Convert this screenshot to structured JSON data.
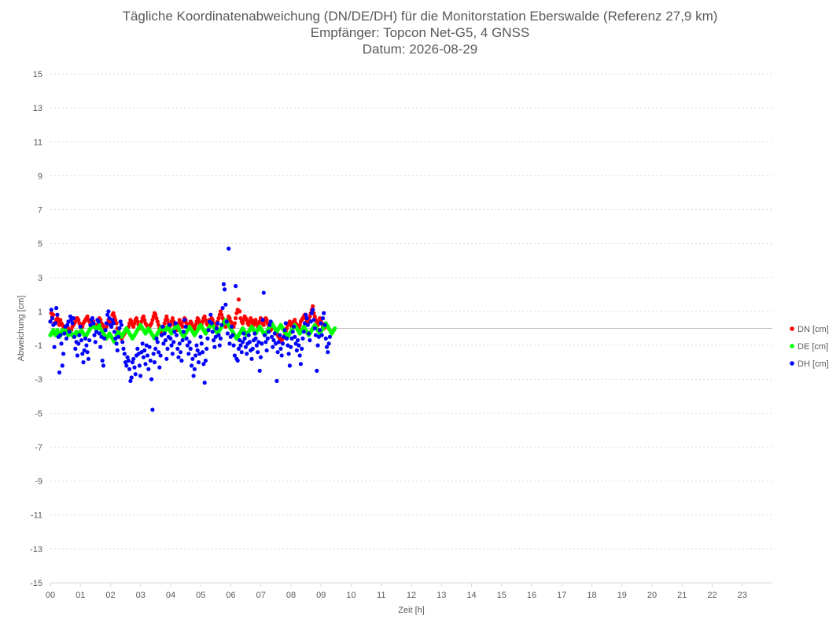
{
  "chart_data": {
    "type": "scatter",
    "title": "Tägliche Koordinatenabweichung (DN/DE/DH) für die Monitorstation Eberswalde (Referenz 27,9 km)",
    "subtitle1": "Empfänger: Topcon Net-G5, 4 GNSS",
    "subtitle2": "Datum: 2026-08-29",
    "xlabel": "Zeit [h]",
    "ylabel": "Abweichung [cm]",
    "xlim": [
      0,
      24
    ],
    "ylim": [
      -15,
      15
    ],
    "y_ticks": [
      15,
      13,
      11,
      9,
      7,
      5,
      3,
      1,
      -1,
      -3,
      -5,
      -7,
      -9,
      -11,
      -13,
      -15
    ],
    "x_tick_labels": [
      "00",
      "01",
      "02",
      "03",
      "04",
      "05",
      "06",
      "07",
      "08",
      "09",
      "10",
      "11",
      "12",
      "13",
      "14",
      "15",
      "16",
      "17",
      "18",
      "19",
      "20",
      "21",
      "22",
      "23"
    ],
    "grid": "horizontal dashed",
    "legend_position": "right",
    "sample_interval_h": 0.0333,
    "series": [
      {
        "name": "DN [cm]",
        "color": "#ff0000",
        "y": [
          0.4,
          0.9,
          0.7,
          0.8,
          0.3,
          0.3,
          0.5,
          0.6,
          0.4,
          0.2,
          0.5,
          0.3,
          0.2,
          0.1,
          0.1,
          -0.1,
          -0.2,
          -0.1,
          0.0,
          -0.1,
          -0.2,
          -0.1,
          0.1,
          0.2,
          0.3,
          0.4,
          0.6,
          0.6,
          0.5,
          0.3,
          0.2,
          0.0,
          0.1,
          0.3,
          0.4,
          0.5,
          0.6,
          0.7,
          0.5,
          0.4,
          0.3,
          0.5,
          0.6,
          0.4,
          0.2,
          0.1,
          0.0,
          0.2,
          0.4,
          0.6,
          0.5,
          0.3,
          0.2,
          0.1,
          0.0,
          -0.1,
          0.1,
          0.3,
          0.5,
          0.6,
          0.4,
          0.3,
          0.8,
          0.9,
          0.7,
          0.5,
          0.3,
          0.0,
          -0.2,
          -0.4,
          -0.5,
          -0.6,
          -0.5,
          -0.4,
          -0.3,
          -0.2,
          -0.1,
          0.0,
          0.1,
          0.3,
          0.5,
          0.4,
          0.2,
          0.1,
          0.3,
          0.5,
          0.6,
          0.4,
          0.2,
          0.0,
          0.2,
          0.4,
          0.6,
          0.7,
          0.5,
          0.3,
          0.2,
          0.1,
          0.0,
          0.1,
          0.2,
          0.3,
          0.5,
          0.7,
          0.9,
          0.8,
          0.6,
          0.4,
          0.2,
          0.0,
          -0.2,
          -0.3,
          -0.1,
          0.1,
          0.3,
          0.5,
          0.7,
          0.5,
          0.3,
          0.1,
          0.2,
          0.4,
          0.6,
          0.4,
          0.2,
          0.0,
          -0.1,
          0.1,
          0.3,
          0.5,
          0.3,
          0.2,
          0.1,
          0.4,
          0.6,
          0.5,
          0.3,
          0.1,
          0.0,
          0.2,
          0.4,
          0.3,
          0.1,
          -0.1,
          0.0,
          0.2,
          0.4,
          0.6,
          0.5,
          0.3,
          0.1,
          0.2,
          0.4,
          0.6,
          0.7,
          0.5,
          0.3,
          0.2,
          0.3,
          0.5,
          0.4,
          0.6,
          0.5,
          0.3,
          0.1,
          0.0,
          0.2,
          0.4,
          0.6,
          0.8,
          1.0,
          0.8,
          0.6,
          0.4,
          0.2,
          0.1,
          0.3,
          0.5,
          0.7,
          0.6,
          0.4,
          0.3,
          0.2,
          0.1,
          0.3,
          0.6,
          0.9,
          1.1,
          1.7,
          1.0,
          0.6,
          0.4,
          0.3,
          0.5,
          0.7,
          0.6,
          0.5,
          0.3,
          0.2,
          0.4,
          0.6,
          0.5,
          0.3,
          0.2,
          0.4,
          0.5,
          0.3,
          0.1,
          0.2,
          0.4,
          0.6,
          0.5,
          0.3,
          0.2,
          0.4,
          0.6,
          0.5,
          0.3,
          0.1,
          0.0,
          -0.1,
          0.0,
          0.2,
          0.1,
          0.0,
          -0.2,
          -0.3,
          -0.4,
          -0.5,
          -0.6,
          -0.7,
          -0.8,
          -0.6,
          -0.5,
          -0.4,
          -0.2,
          0.0,
          0.2,
          0.3,
          0.4,
          0.2,
          0.1,
          0.3,
          0.4,
          0.5,
          0.3,
          0.2,
          0.1,
          0.0,
          0.2,
          0.4,
          0.5,
          0.6,
          0.7,
          0.8,
          0.6,
          0.4,
          0.3,
          0.5,
          0.7,
          0.9,
          1.1,
          1.3,
          0.9,
          0.7,
          0.5,
          0.3,
          0.2,
          0.4,
          0.6,
          0.5,
          0.3,
          0.1,
          0.0,
          0.2,
          0.1
        ]
      },
      {
        "name": "DE [cm]",
        "color": "#00ff00",
        "y": [
          -0.4,
          -0.3,
          -0.2,
          -0.1,
          -0.3,
          -0.4,
          -0.2,
          -0.1,
          -0.3,
          -0.5,
          -0.4,
          -0.2,
          -0.1,
          -0.3,
          -0.2,
          -0.1,
          -0.2,
          -0.3,
          -0.4,
          -0.3,
          -0.2,
          -0.3,
          -0.4,
          -0.5,
          -0.4,
          -0.3,
          -0.2,
          -0.3,
          -0.4,
          -0.3,
          -0.2,
          -0.1,
          -0.2,
          -0.3,
          -0.4,
          -0.5,
          -0.4,
          -0.3,
          -0.2,
          -0.1,
          0.0,
          0.1,
          0.2,
          0.3,
          0.1,
          0.0,
          -0.1,
          0.0,
          0.1,
          0.2,
          0.0,
          -0.1,
          -0.2,
          -0.3,
          -0.4,
          -0.5,
          -0.6,
          -0.5,
          -0.4,
          -0.3,
          -0.4,
          -0.5,
          -0.6,
          -0.7,
          -0.8,
          -0.6,
          -0.4,
          -0.3,
          -0.2,
          -0.3,
          -0.4,
          -0.5,
          -0.4,
          -0.3,
          -0.2,
          -0.1,
          0.0,
          -0.1,
          -0.2,
          -0.3,
          -0.4,
          -0.5,
          -0.6,
          -0.5,
          -0.4,
          -0.3,
          -0.2,
          -0.1,
          0.0,
          0.1,
          0.2,
          0.1,
          0.0,
          -0.1,
          -0.2,
          -0.3,
          -0.2,
          -0.1,
          0.0,
          -0.1,
          -0.2,
          -0.3,
          -0.4,
          -0.5,
          -0.6,
          -0.5,
          -0.4,
          -0.3,
          -0.2,
          -0.1,
          0.0,
          0.1,
          0.0,
          -0.1,
          -0.2,
          -0.1,
          0.0,
          0.1,
          0.0,
          -0.1,
          -0.2,
          -0.3,
          -0.2,
          -0.1,
          0.0,
          0.1,
          0.2,
          0.1,
          0.0,
          -0.1,
          -0.2,
          -0.3,
          -0.4,
          -0.5,
          -0.4,
          -0.3,
          -0.2,
          -0.1,
          0.0,
          0.1,
          0.0,
          -0.1,
          -0.2,
          -0.3,
          -0.4,
          -0.3,
          -0.2,
          -0.1,
          0.0,
          0.1,
          0.2,
          0.1,
          0.0,
          -0.1,
          -0.2,
          -0.3,
          -0.2,
          -0.1,
          0.0,
          0.1,
          0.2,
          0.3,
          0.2,
          0.1,
          0.0,
          -0.1,
          -0.2,
          -0.3,
          -0.2,
          -0.1,
          0.0,
          0.1,
          0.2,
          0.3,
          0.4,
          0.5,
          0.4,
          0.3,
          0.2,
          0.1,
          0.0,
          -0.1,
          -0.2,
          -0.3,
          -0.4,
          -0.5,
          -0.6,
          -0.5,
          -0.4,
          -0.3,
          -0.2,
          -0.1,
          0.0,
          -0.1,
          -0.2,
          -0.3,
          -0.4,
          -0.3,
          -0.2,
          -0.1,
          0.0,
          0.1,
          0.0,
          -0.1,
          -0.2,
          -0.3,
          -0.2,
          -0.1,
          0.0,
          0.1,
          0.0,
          -0.1,
          -0.2,
          -0.3,
          -0.4,
          -0.3,
          -0.2,
          -0.1,
          0.0,
          0.1,
          0.2,
          0.3,
          0.2,
          0.1,
          0.0,
          -0.1,
          -0.2,
          -0.1,
          0.0,
          0.1,
          0.2,
          0.1,
          0.0,
          -0.1,
          -0.2,
          -0.3,
          -0.4,
          -0.5,
          -0.4,
          -0.3,
          -0.2,
          -0.1,
          0.0,
          0.1,
          0.2,
          0.1,
          0.0,
          -0.1,
          -0.2,
          -0.3,
          -0.2,
          -0.1,
          0.0,
          0.1,
          0.0,
          -0.1,
          -0.2,
          -0.3,
          -0.4,
          -0.3,
          -0.2,
          -0.1,
          0.0,
          0.1,
          0.2,
          0.1,
          0.0,
          -0.1,
          -0.2,
          -0.3,
          -0.2,
          -0.1,
          0.0,
          0.1,
          0.2,
          0.3,
          0.2,
          0.1,
          0.0,
          -0.1,
          -0.2,
          -0.3,
          -0.2,
          -0.1,
          0.0
        ]
      },
      {
        "name": "DH [cm]",
        "color": "#0000ff",
        "y": [
          0.4,
          1.1,
          0.6,
          0.2,
          -1.1,
          0.3,
          1.2,
          0.8,
          -0.5,
          -2.6,
          -0.4,
          -0.9,
          -2.2,
          -1.5,
          -0.3,
          0.1,
          -0.6,
          0.2,
          0.4,
          -0.2,
          0.7,
          0.5,
          0.3,
          0.6,
          -0.5,
          -1.2,
          -0.8,
          -1.6,
          -0.9,
          -0.4,
          0.1,
          -0.7,
          -1.5,
          -2.0,
          -1.3,
          -0.6,
          -1.0,
          -1.4,
          -1.8,
          -0.7,
          0.2,
          0.5,
          0.6,
          0.3,
          -0.4,
          -0.8,
          -0.2,
          0.5,
          0.4,
          -0.3,
          -1.1,
          -0.5,
          -1.9,
          -2.2,
          -0.6,
          -0.1,
          0.3,
          0.8,
          1.0,
          0.6,
          0.2,
          0.1,
          0.5,
          0.3,
          -0.2,
          -0.6,
          -0.9,
          -1.3,
          -0.5,
          0.0,
          0.4,
          0.2,
          -0.8,
          -1.2,
          -1.5,
          -2.0,
          -2.2,
          -1.7,
          -1.9,
          -2.4,
          -3.1,
          -2.9,
          -2.0,
          -1.8,
          -2.3,
          -2.7,
          -1.6,
          -1.2,
          -1.5,
          -2.2,
          -2.8,
          -1.4,
          -0.9,
          -1.7,
          -1.3,
          -2.1,
          -1.0,
          -1.6,
          -2.4,
          -1.1,
          -1.9,
          -3.0,
          -4.8,
          -1.5,
          -2.0,
          -1.2,
          -0.6,
          -0.8,
          -1.4,
          -2.3,
          -1.6,
          -0.4,
          0.1,
          -0.9,
          -0.3,
          -0.7,
          -1.8,
          -1.2,
          -0.5,
          0.2,
          -0.6,
          -1.0,
          -1.5,
          -0.8,
          -0.2,
          0.3,
          -0.4,
          -1.2,
          -1.7,
          -0.9,
          -1.4,
          -1.9,
          -0.7,
          -0.2,
          0.5,
          0.1,
          -0.6,
          -1.0,
          -1.5,
          -0.8,
          -1.2,
          -2.2,
          -1.8,
          -2.8,
          -2.4,
          -1.6,
          -1.0,
          -1.3,
          -2.0,
          -1.5,
          -0.5,
          -0.9,
          -1.4,
          -2.1,
          -3.2,
          -1.9,
          -1.2,
          -0.6,
          -0.1,
          0.4,
          0.8,
          0.3,
          -0.2,
          -0.7,
          -1.1,
          -0.5,
          0.0,
          0.3,
          -0.4,
          -1.0,
          -0.6,
          0.2,
          1.2,
          2.6,
          2.3,
          1.4,
          0.4,
          -0.3,
          4.7,
          -0.9,
          -0.5,
          0.1,
          -0.4,
          -1.0,
          -1.6,
          2.5,
          -1.8,
          -1.9,
          -1.2,
          -0.7,
          -1.0,
          -1.4,
          -0.8,
          -0.3,
          -0.6,
          -1.1,
          -1.5,
          -0.9,
          -0.4,
          -0.8,
          -1.3,
          -1.8,
          -1.2,
          -0.7,
          -0.3,
          -0.6,
          -1.0,
          -1.4,
          -0.8,
          -2.5,
          -1.7,
          -0.9,
          0.5,
          2.1,
          -0.4,
          -0.8,
          -1.3,
          -0.6,
          -0.2,
          0.2,
          0.4,
          -0.5,
          -1.1,
          -0.7,
          -0.3,
          -0.9,
          -3.1,
          -1.4,
          -0.8,
          -0.4,
          -1.2,
          -1.6,
          -0.9,
          -0.5,
          -0.1,
          0.3,
          -0.6,
          -1.0,
          -1.5,
          -2.2,
          -1.1,
          -0.6,
          -0.2,
          0.1,
          -0.5,
          -0.9,
          -1.3,
          -0.7,
          -1.0,
          -1.6,
          -2.1,
          -1.2,
          -0.6,
          -0.2,
          0.3,
          0.8,
          0.6,
          0.2,
          -0.3,
          -0.7,
          0.4,
          0.9,
          1.1,
          0.5,
          0.0,
          -0.4,
          -2.5,
          -1.0,
          -0.5,
          -0.1,
          0.3,
          -0.4,
          0.6,
          0.9,
          0.2,
          -0.6,
          -1.1,
          -1.4,
          -0.9,
          -0.5
        ]
      }
    ]
  }
}
